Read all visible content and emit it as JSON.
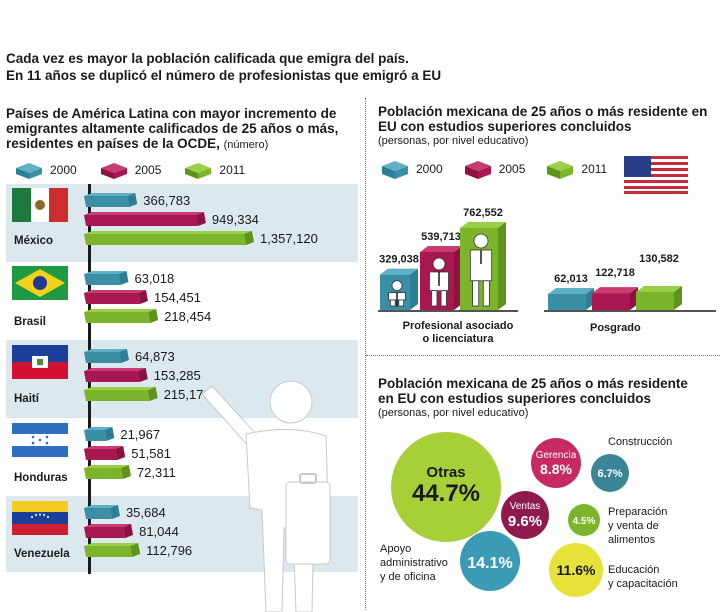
{
  "headline": {
    "line1": "Cada vez es mayor la población calificada que emigra del país.",
    "line2": "En 11 años se duplicó el número de profesionistas que emigró a EU"
  },
  "colors": {
    "y2000": "#3b8fa5",
    "y2005": "#a8174f",
    "y2011": "#7cb52b",
    "band": "#dbe9ee"
  },
  "left": {
    "title_line1": "Países de América Latina con mayor incremento de",
    "title_line2": "emigrantes altamente calificados de 25 años o más,",
    "title_line3": "residentes en países de la OCDE,",
    "title_suffix": "(número)",
    "legend": [
      "2000",
      "2005",
      "2011"
    ]
  },
  "top_right": {
    "title_line1": "Población mexicana de 25 años o más residente en",
    "title_line2": "EU con estudios superiores concluidos",
    "subtitle": "(personas, por nivel educativo)",
    "legend": [
      "2000",
      "2005",
      "2011"
    ],
    "group_labels": {
      "professional_line1": "Profesional asociado",
      "professional_line2": "o licenciatura",
      "posgrado": "Posgrado"
    }
  },
  "bottom_right": {
    "title_line1": "Población mexicana de 25 años o más residente",
    "title_line2": "en EU con estudios superiores concluidos",
    "subtitle": "(personas, por nivel educativo)",
    "bubbles": {
      "otras_label": "Otras",
      "otras_value": "44.7%",
      "gerencia_label": "Gerencia",
      "gerencia_value": "8.8%",
      "construccion_value": "6.7%",
      "construccion_label": "Construcción",
      "ventas_label": "Ventas",
      "ventas_value": "9.6%",
      "alimentos_value": "4.5%",
      "alimentos_label1": "Preparación",
      "alimentos_label2": "y venta de",
      "alimentos_label3": "alimentos",
      "apoyo_value": "14.1%",
      "apoyo_label1": "Apoyo",
      "apoyo_label2": "administrativo",
      "apoyo_label3": "y de oficina",
      "educacion_value": "11.6%",
      "educacion_label1": "Educación",
      "educacion_label2": "y capacitación"
    }
  },
  "chart_data": [
    {
      "type": "bar",
      "title": "Países de América Latina con mayor incremento de emigrantes altamente calificados de 25 años o más, residentes en países de la OCDE, (número)",
      "categories": [
        "México",
        "Brasil",
        "Haití",
        "Honduras",
        "Venezuela"
      ],
      "series": [
        {
          "name": "2000",
          "values": [
            366783,
            63018,
            64873,
            21967,
            35684
          ]
        },
        {
          "name": "2005",
          "values": [
            949334,
            154451,
            153285,
            51581,
            81044
          ]
        },
        {
          "name": "2011",
          "values": [
            1357120,
            218454,
            215173,
            72311,
            112796
          ]
        }
      ],
      "labels": [
        [
          "366,783",
          "949,334",
          "1,357,120"
        ],
        [
          "63,018",
          "154,451",
          "218,454"
        ],
        [
          "64,873",
          "153,285",
          "215,173"
        ],
        [
          "21,967",
          "51,581",
          "72,311"
        ],
        [
          "35,684",
          "81,044",
          "112,796"
        ]
      ]
    },
    {
      "type": "bar",
      "title": "Población mexicana de 25 años o más residente en EU con estudios superiores concluidos (personas, por nivel educativo)",
      "categories": [
        "Profesional asociado o licenciatura",
        "Posgrado"
      ],
      "series": [
        {
          "name": "2000",
          "values": [
            329038,
            62013
          ]
        },
        {
          "name": "2005",
          "values": [
            539713,
            122718
          ]
        },
        {
          "name": "2011",
          "values": [
            762552,
            130582
          ]
        }
      ],
      "labels": [
        [
          "329,038",
          "539,713",
          "762,552"
        ],
        [
          "62,013",
          "122,718",
          "130,582"
        ]
      ]
    },
    {
      "type": "pie",
      "title": "Población mexicana de 25 años o más residente en EU con estudios superiores concluidos (personas, por nivel educativo)",
      "categories": [
        "Otras",
        "Apoyo administrativo y de oficina",
        "Educación y capacitación",
        "Ventas",
        "Gerencia",
        "Construcción",
        "Preparación y venta de alimentos"
      ],
      "values": [
        44.7,
        14.1,
        11.6,
        9.6,
        8.8,
        6.7,
        4.5
      ]
    }
  ]
}
